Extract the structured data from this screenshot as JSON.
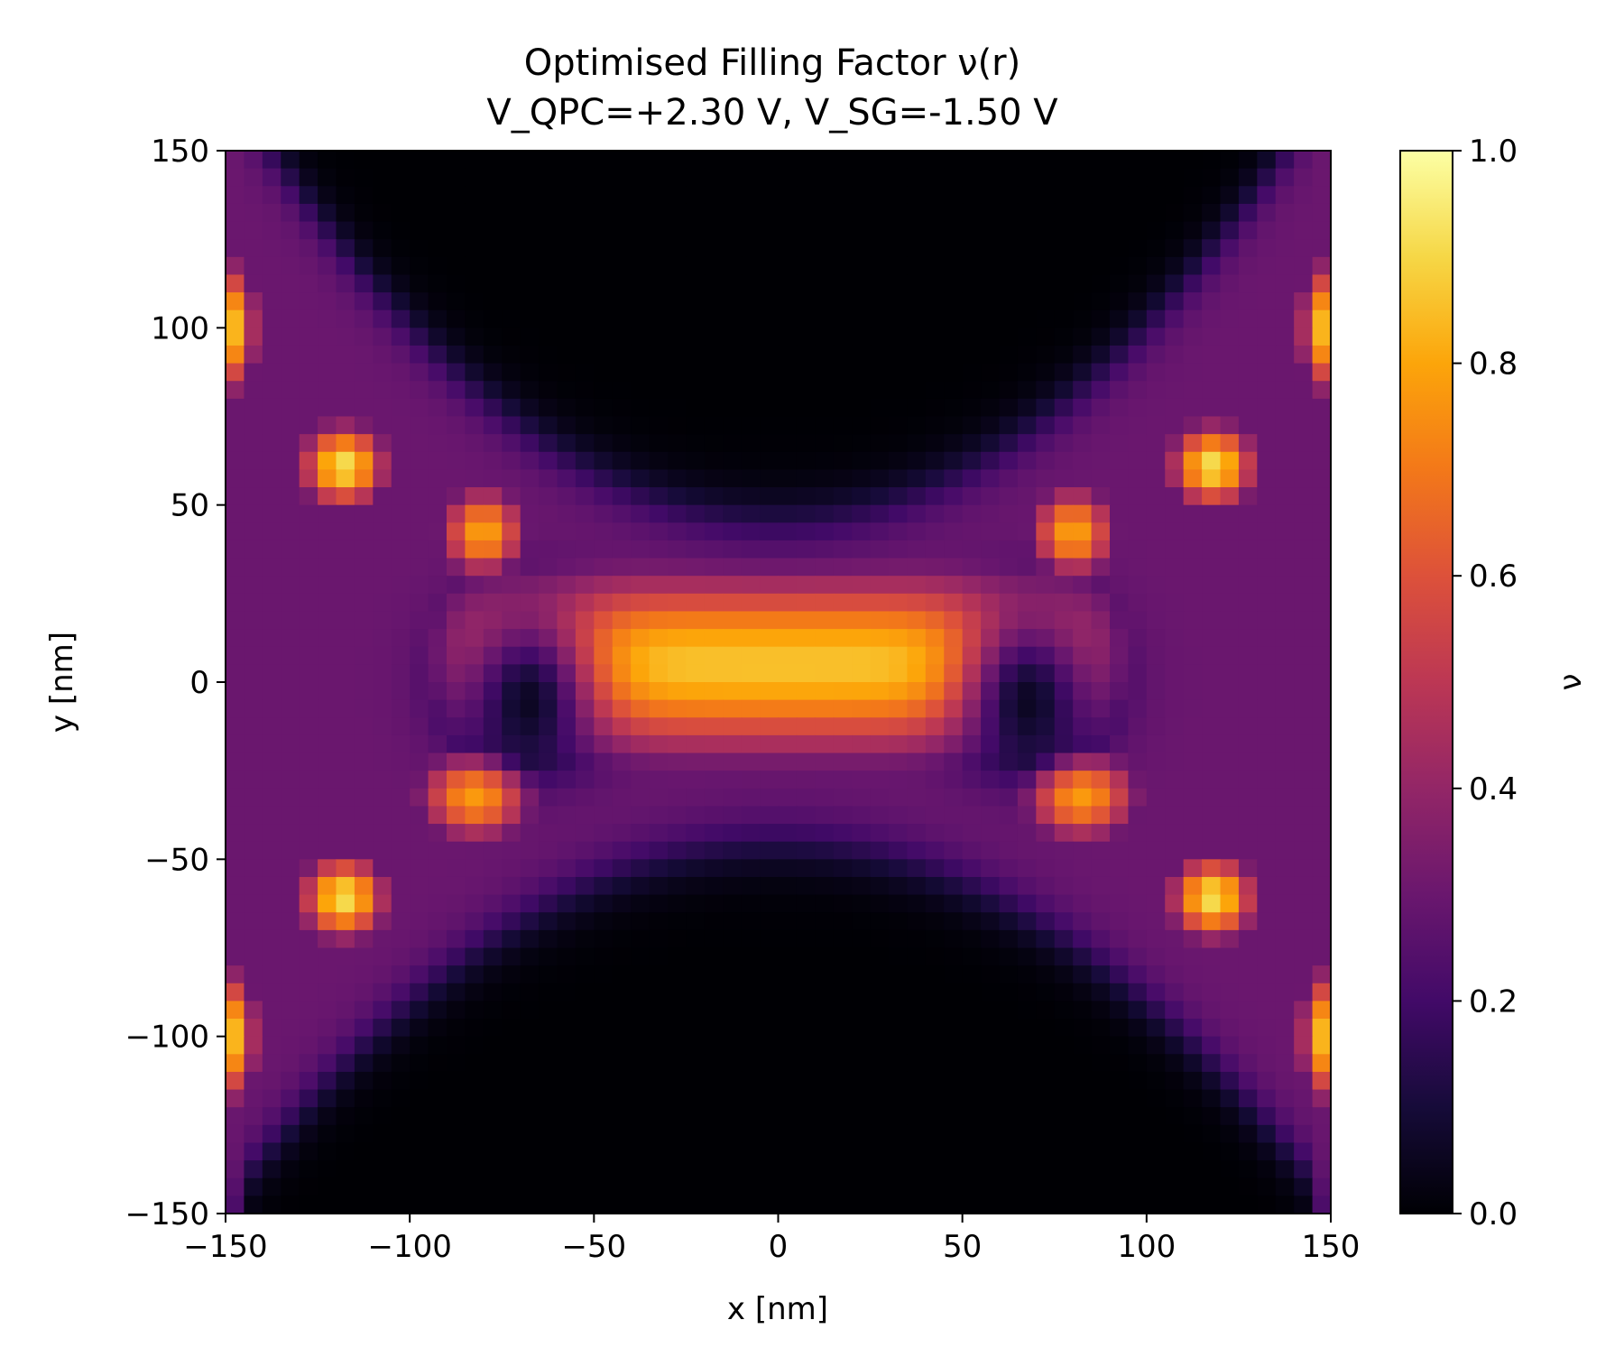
{
  "chart_data": {
    "type": "heatmap",
    "title": "Optimised Filling Factor ν(r)",
    "subtitle": "V_QPC=+2.30 V, V_SG=-1.50 V",
    "xlabel": "x [nm]",
    "ylabel": "y [nm]",
    "xlim": [
      -150,
      150
    ],
    "ylim": [
      -150,
      150
    ],
    "x_ticks": [
      -150,
      -100,
      -50,
      0,
      50,
      100,
      150
    ],
    "y_ticks": [
      -150,
      -100,
      -50,
      0,
      50,
      100,
      150
    ],
    "x_tick_labels": [
      "−150",
      "−100",
      "−50",
      "0",
      "50",
      "100",
      "150"
    ],
    "y_tick_labels": [
      "−150",
      "−100",
      "−50",
      "0",
      "50",
      "100",
      "150"
    ],
    "colormap": "inferno",
    "grid": false,
    "grid_points": 60,
    "colorbar": {
      "label": "ν",
      "range": [
        0.0,
        1.0
      ],
      "ticks": [
        0.0,
        0.2,
        0.4,
        0.6,
        0.8,
        1.0
      ],
      "tick_labels": [
        "0.0",
        "0.2",
        "0.4",
        "0.6",
        "0.8",
        "1.0"
      ]
    },
    "regions": [
      {
        "name": "central channel (x < 0)",
        "x": -25,
        "y": 8,
        "value": 0.88
      },
      {
        "name": "central channel (x > 0)",
        "x": 25,
        "y": 8,
        "value": 0.88
      },
      {
        "name": "channel neck",
        "x": 0,
        "y": 0,
        "value": 0.82
      },
      {
        "name": "left hole",
        "x": -67,
        "y": 0,
        "value": 0.12
      },
      {
        "name": "right hole",
        "x": 67,
        "y": 0,
        "value": 0.12
      },
      {
        "name": "hot spot",
        "x": -118,
        "y": 62,
        "value": 0.92
      },
      {
        "name": "hot spot",
        "x": 118,
        "y": 62,
        "value": 0.92
      },
      {
        "name": "hot spot",
        "x": -118,
        "y": -60,
        "value": 0.92
      },
      {
        "name": "hot spot",
        "x": 118,
        "y": -60,
        "value": 0.92
      },
      {
        "name": "edge strip",
        "x": -146,
        "y": 100,
        "value": 0.85
      },
      {
        "name": "edge strip",
        "x": 146,
        "y": 100,
        "value": 0.85
      },
      {
        "name": "edge strip",
        "x": -146,
        "y": -100,
        "value": 0.85
      },
      {
        "name": "edge strip",
        "x": 146,
        "y": -100,
        "value": 0.85
      },
      {
        "name": "upper depleted region",
        "x": 0,
        "y": 110,
        "value": 0.0
      },
      {
        "name": "lower depleted region",
        "x": 0,
        "y": -110,
        "value": 0.0
      },
      {
        "name": "side background",
        "x": -135,
        "y": 0,
        "value": 0.3
      },
      {
        "name": "side background",
        "x": 135,
        "y": 0,
        "value": 0.3
      }
    ]
  }
}
